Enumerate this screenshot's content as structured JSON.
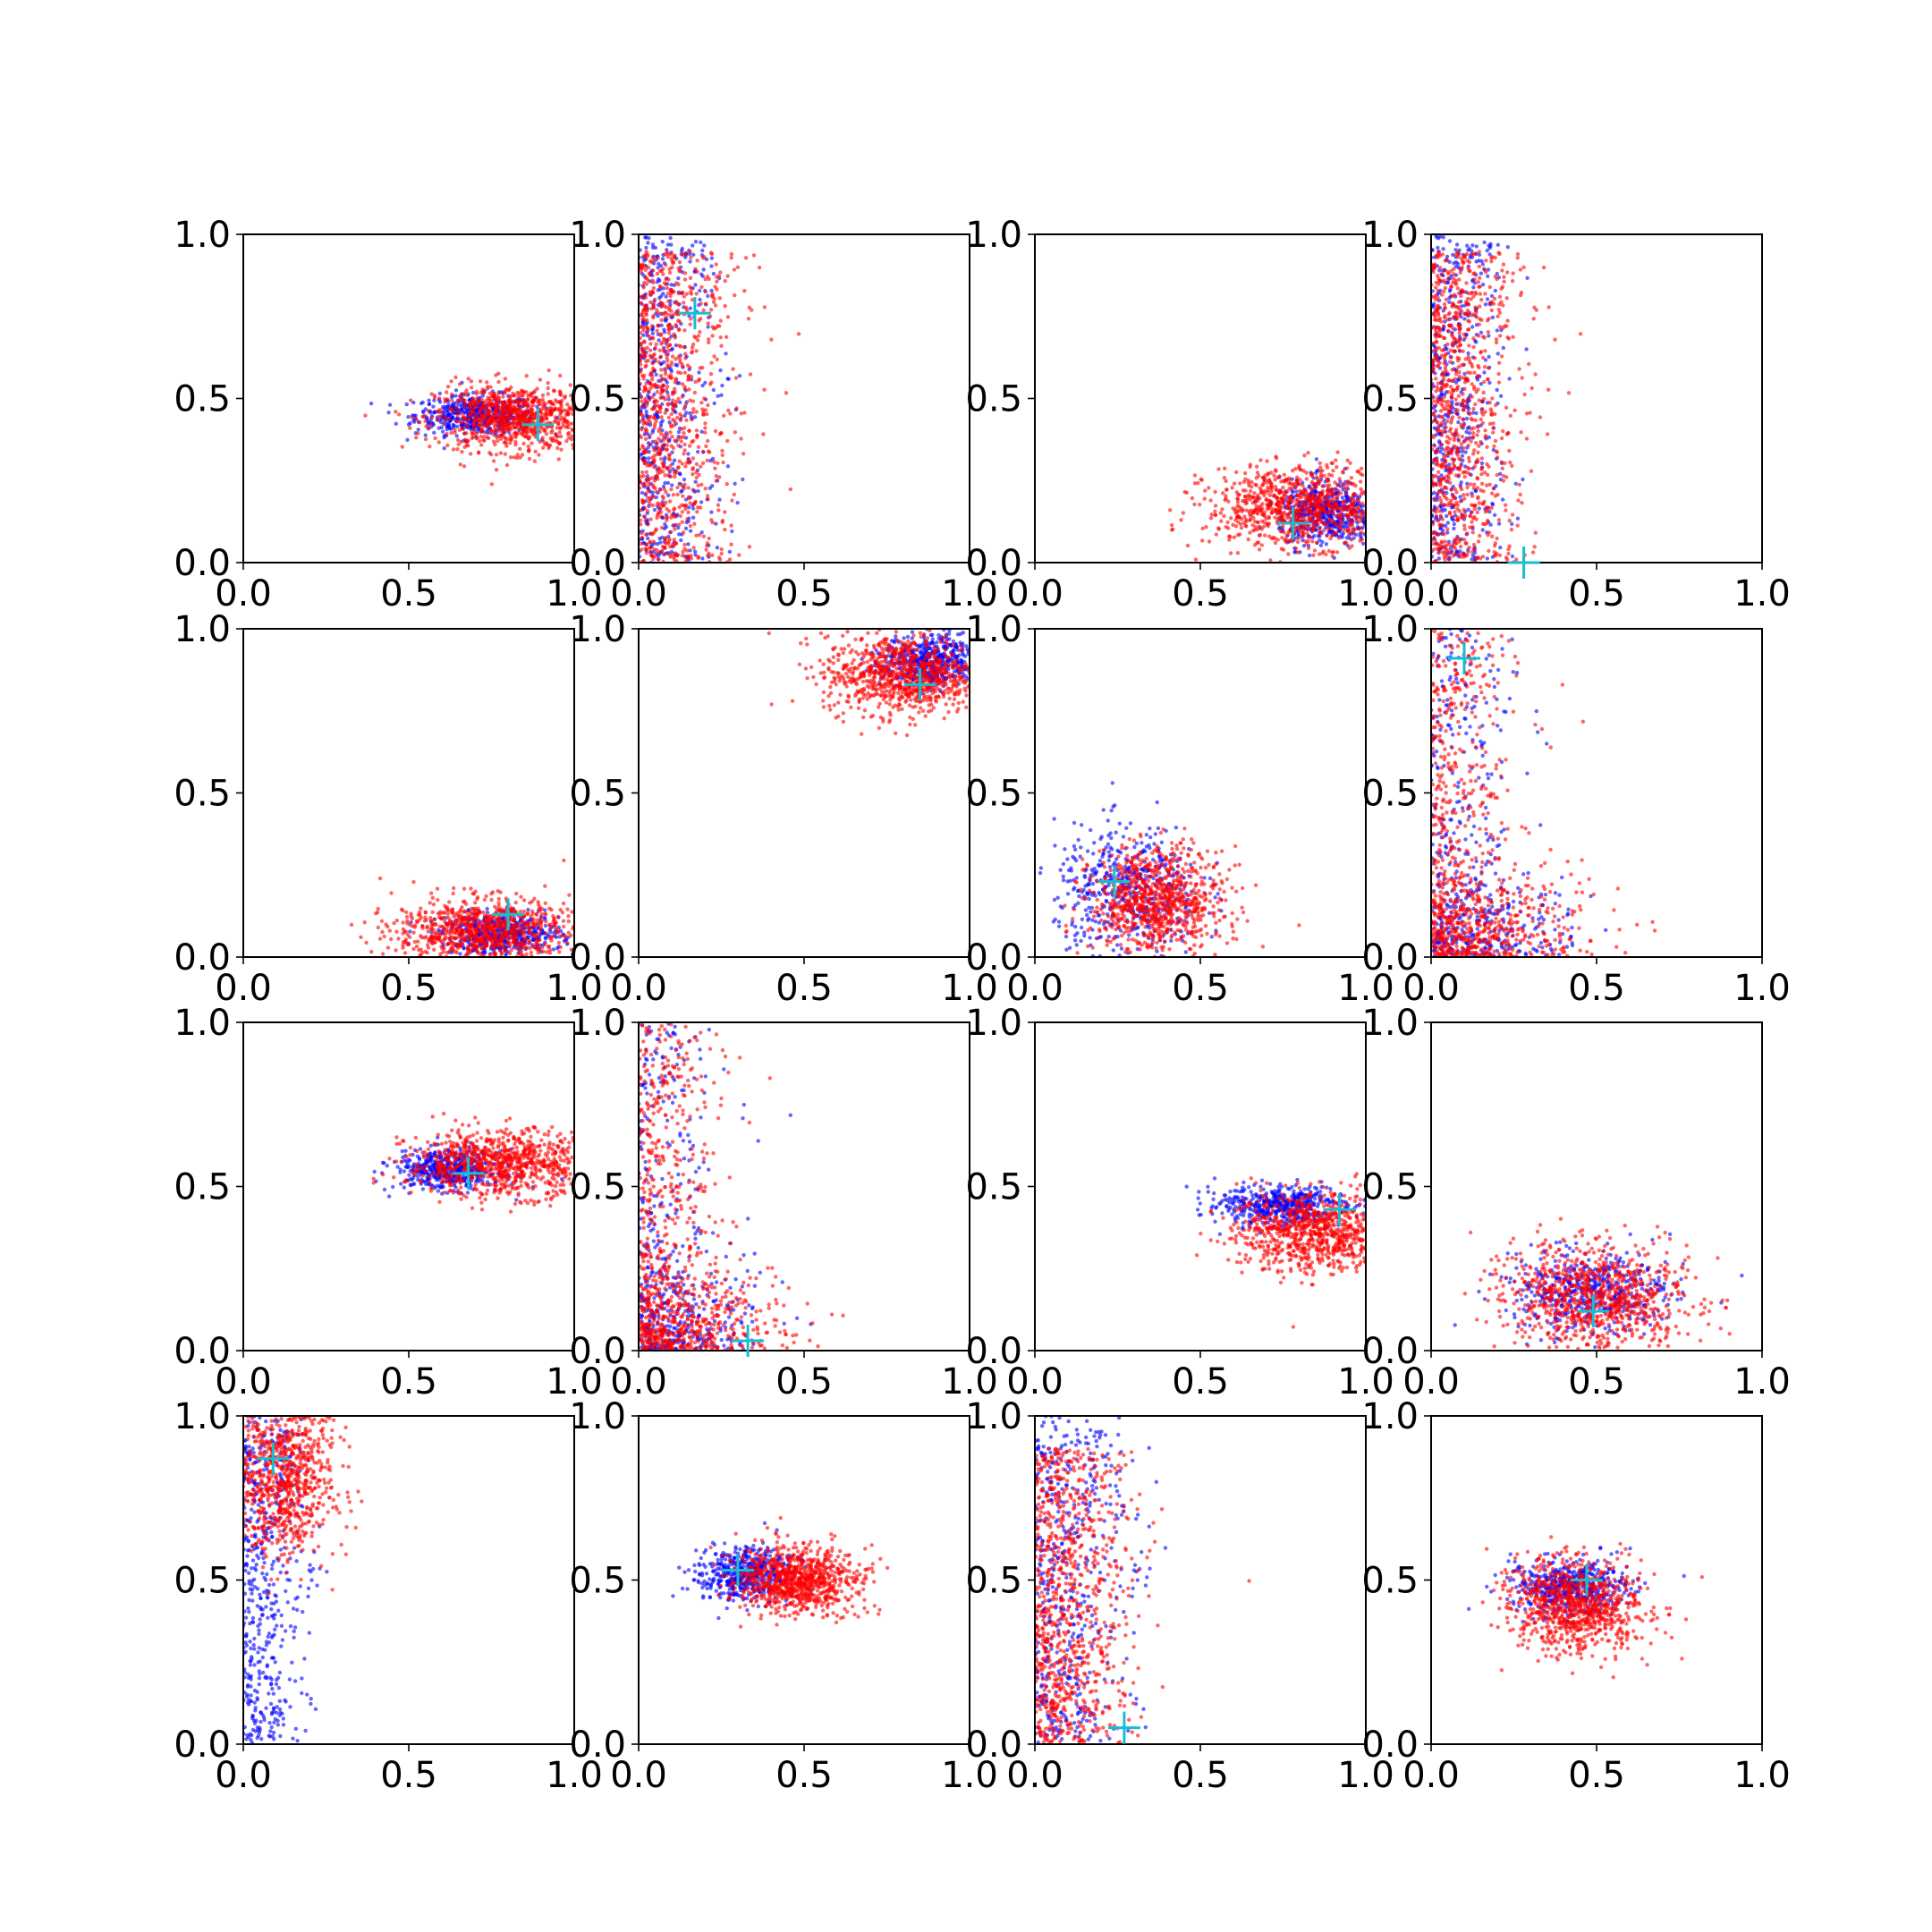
{
  "colors": {
    "series_a": "#0000ff",
    "series_b": "#ff0000",
    "marker": "#17becf",
    "axes": "#000000"
  },
  "chart_data": {
    "type": "scatter",
    "layout": "4x4 grid of scatter subplots",
    "xlim": [
      0,
      1
    ],
    "ylim": [
      0,
      1
    ],
    "xticks": [
      "0.0",
      "0.5",
      "1.0"
    ],
    "yticks": [
      "0.0",
      "0.5",
      "1.0"
    ],
    "grid": false,
    "legend": "none",
    "series": [
      {
        "color": "blue",
        "marker": "dot"
      },
      {
        "color": "red",
        "marker": "dot"
      },
      {
        "color": "cyan",
        "marker": "plus"
      }
    ],
    "panels": [
      {
        "blue": {
          "shape": "blob",
          "cx": 0.7,
          "cy": 0.45,
          "sx": 0.09,
          "sy": 0.03
        },
        "red": {
          "shape": "blob",
          "cx": 0.82,
          "cy": 0.44,
          "sx": 0.12,
          "sy": 0.05
        },
        "marker": [
          0.89,
          0.42
        ]
      },
      {
        "blue": {
          "shape": "band",
          "x0": 0.0,
          "x1": 0.25,
          "y0": 0.0,
          "y1": 1.0
        },
        "red": {
          "shape": "band",
          "x0": 0.0,
          "x1": 0.3,
          "y0": 0.0,
          "y1": 0.95
        },
        "marker": [
          0.17,
          0.76
        ]
      },
      {
        "blue": {
          "shape": "blob",
          "cx": 0.88,
          "cy": 0.15,
          "sx": 0.07,
          "sy": 0.05
        },
        "red": {
          "shape": "blob",
          "cx": 0.8,
          "cy": 0.17,
          "sx": 0.14,
          "sy": 0.06
        },
        "marker": [
          0.78,
          0.12
        ]
      },
      {
        "blue": {
          "shape": "band",
          "x0": 0.0,
          "x1": 0.22,
          "y0": 0.0,
          "y1": 1.0
        },
        "red": {
          "shape": "band",
          "x0": 0.0,
          "x1": 0.28,
          "y0": 0.0,
          "y1": 0.95
        },
        "marker": [
          0.28,
          0.0
        ]
      },
      {
        "blue": {
          "shape": "blob",
          "cx": 0.78,
          "cy": 0.07,
          "sx": 0.09,
          "sy": 0.03
        },
        "red": {
          "shape": "blob",
          "cx": 0.72,
          "cy": 0.08,
          "sx": 0.13,
          "sy": 0.05
        },
        "marker": [
          0.8,
          0.13
        ]
      },
      {
        "blue": {
          "shape": "blob",
          "cx": 0.88,
          "cy": 0.9,
          "sx": 0.07,
          "sy": 0.04
        },
        "red": {
          "shape": "blob",
          "cx": 0.8,
          "cy": 0.86,
          "sx": 0.12,
          "sy": 0.06
        },
        "marker": [
          0.85,
          0.83
        ]
      },
      {
        "blue": {
          "shape": "blob",
          "cx": 0.28,
          "cy": 0.2,
          "sx": 0.11,
          "sy": 0.1
        },
        "red": {
          "shape": "blob",
          "cx": 0.37,
          "cy": 0.17,
          "sx": 0.1,
          "sy": 0.08
        },
        "marker": [
          0.24,
          0.23
        ]
      },
      {
        "blue": {
          "shape": "corner",
          "x0": 0.0,
          "x1": 0.6,
          "y0": 0.0,
          "y1": 1.0
        },
        "red": {
          "shape": "corner",
          "x0": 0.0,
          "x1": 0.65,
          "y0": 0.0,
          "y1": 1.0
        },
        "marker": [
          0.1,
          0.91
        ]
      },
      {
        "blue": {
          "shape": "blob",
          "cx": 0.62,
          "cy": 0.55,
          "sx": 0.08,
          "sy": 0.03
        },
        "red": {
          "shape": "blob",
          "cx": 0.78,
          "cy": 0.57,
          "sx": 0.14,
          "sy": 0.05
        },
        "marker": [
          0.68,
          0.54
        ]
      },
      {
        "blue": {
          "shape": "corner",
          "x0": 0.0,
          "x1": 0.5,
          "y0": 0.0,
          "y1": 1.0
        },
        "red": {
          "shape": "corner",
          "x0": 0.0,
          "x1": 0.6,
          "y0": 0.0,
          "y1": 1.0
        },
        "marker": [
          0.33,
          0.03
        ]
      },
      {
        "blue": {
          "shape": "blob",
          "cx": 0.75,
          "cy": 0.44,
          "sx": 0.1,
          "sy": 0.03
        },
        "red": {
          "shape": "blob",
          "cx": 0.85,
          "cy": 0.36,
          "sx": 0.12,
          "sy": 0.06
        },
        "marker": [
          0.92,
          0.43
        ]
      },
      {
        "blue": {
          "shape": "blob",
          "cx": 0.48,
          "cy": 0.18,
          "sx": 0.12,
          "sy": 0.06
        },
        "red": {
          "shape": "blob",
          "cx": 0.5,
          "cy": 0.16,
          "sx": 0.14,
          "sy": 0.08
        },
        "marker": [
          0.49,
          0.12
        ]
      },
      {
        "blue": {
          "shape": "band",
          "x0": 0.0,
          "x1": 0.2,
          "y0": 0.0,
          "y1": 1.0
        },
        "red": {
          "shape": "blob",
          "cx": 0.12,
          "cy": 0.82,
          "sx": 0.08,
          "sy": 0.12
        },
        "marker": [
          0.09,
          0.87
        ]
      },
      {
        "blue": {
          "shape": "blob",
          "cx": 0.32,
          "cy": 0.52,
          "sx": 0.07,
          "sy": 0.04
        },
        "red": {
          "shape": "blob",
          "cx": 0.48,
          "cy": 0.5,
          "sx": 0.09,
          "sy": 0.05
        },
        "marker": [
          0.3,
          0.53
        ]
      },
      {
        "blue": {
          "shape": "band",
          "x0": 0.0,
          "x1": 0.3,
          "y0": 0.0,
          "y1": 1.0
        },
        "red": {
          "shape": "band",
          "x0": 0.0,
          "x1": 0.3,
          "y0": 0.0,
          "y1": 0.9
        },
        "marker": [
          0.27,
          0.05
        ]
      },
      {
        "blue": {
          "shape": "blob",
          "cx": 0.42,
          "cy": 0.48,
          "sx": 0.09,
          "sy": 0.04
        },
        "red": {
          "shape": "blob",
          "cx": 0.44,
          "cy": 0.42,
          "sx": 0.1,
          "sy": 0.07
        },
        "marker": [
          0.47,
          0.5
        ]
      }
    ]
  }
}
